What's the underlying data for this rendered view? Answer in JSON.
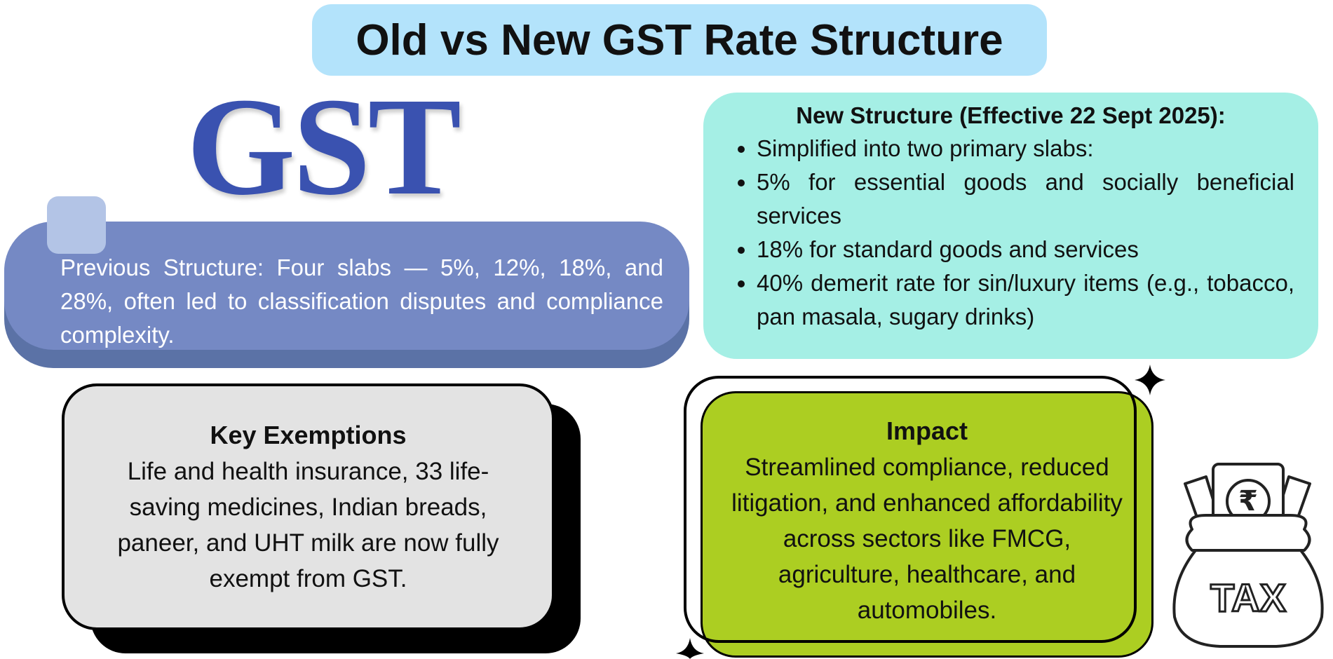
{
  "header": {
    "title": "Old vs New GST Rate Structure"
  },
  "logo": {
    "text": "GST"
  },
  "previous": {
    "text": "Previous Structure: Four slabs — 5%, 12%, 18%, and 28%, often led to classification disputes and compliance complexity."
  },
  "new_structure": {
    "heading": "New Structure (Effective 22 Sept 2025):",
    "bullets": [
      "Simplified into two primary slabs:",
      "5% for essential goods and socially beneficial services",
      "18% for standard goods and services",
      "40% demerit rate for sin/luxury items (e.g., tobacco, pan masala, sugary drinks)"
    ]
  },
  "exemptions": {
    "heading": "Key Exemptions",
    "text": "Life and health insurance, 33 life-saving medicines, Indian breads, paneer, and UHT milk are now fully exempt from GST."
  },
  "impact": {
    "heading": "Impact",
    "text": "Streamlined compliance, reduced litigation, and enhanced affordability across sectors like FMCG, agriculture, healthcare, and automobiles."
  },
  "icon": {
    "symbol": "₹",
    "label": "TAX"
  }
}
